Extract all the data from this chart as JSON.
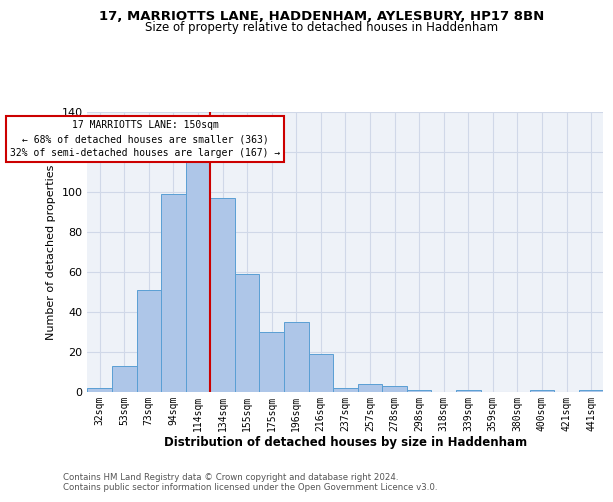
{
  "title_line1": "17, MARRIOTTS LANE, HADDENHAM, AYLESBURY, HP17 8BN",
  "title_line2": "Size of property relative to detached houses in Haddenham",
  "xlabel": "Distribution of detached houses by size in Haddenham",
  "ylabel": "Number of detached properties",
  "bar_labels": [
    "32sqm",
    "53sqm",
    "73sqm",
    "94sqm",
    "114sqm",
    "134sqm",
    "155sqm",
    "175sqm",
    "196sqm",
    "216sqm",
    "237sqm",
    "257sqm",
    "278sqm",
    "298sqm",
    "318sqm",
    "339sqm",
    "359sqm",
    "380sqm",
    "400sqm",
    "421sqm",
    "441sqm"
  ],
  "bar_values": [
    2,
    13,
    51,
    99,
    116,
    97,
    59,
    30,
    35,
    19,
    2,
    4,
    3,
    1,
    0,
    1,
    0,
    0,
    1,
    0,
    1
  ],
  "bar_color": "#aec6e8",
  "bar_edge_color": "#5a9fd4",
  "grid_color": "#d0d8e8",
  "background_color": "#eef2f8",
  "red_line_x": 4.5,
  "annotation_line1": "17 MARRIOTTS LANE: 150sqm",
  "annotation_line2": "← 68% of detached houses are smaller (363)",
  "annotation_line3": "32% of semi-detached houses are larger (167) →",
  "annotation_box_color": "#ffffff",
  "annotation_box_edge": "#cc0000",
  "red_line_color": "#cc0000",
  "ylim_max": 140,
  "yticks": [
    0,
    20,
    40,
    60,
    80,
    100,
    120,
    140
  ],
  "footer_line1": "Contains HM Land Registry data © Crown copyright and database right 2024.",
  "footer_line2": "Contains public sector information licensed under the Open Government Licence v3.0."
}
